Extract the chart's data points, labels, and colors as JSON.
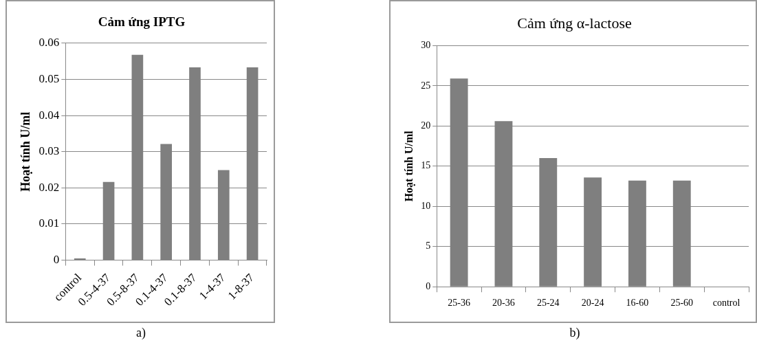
{
  "chart_data": [
    {
      "type": "bar",
      "title": "Cảm ứng IPTG",
      "ylabel": "Hoạt tính U/ml",
      "categories": [
        "control",
        "0.5-4-37",
        "0.5-8-37",
        "0.1-4-37",
        "0.1-8-37",
        "1-4-37",
        "1-8-37"
      ],
      "values": [
        0.0005,
        0.0216,
        0.0568,
        0.0321,
        0.0533,
        0.0249,
        0.0533
      ],
      "color": "#7f7f7f",
      "ylim": [
        0,
        0.06
      ],
      "yticks": [
        0,
        0.01,
        0.02,
        0.03,
        0.04,
        0.05,
        0.06
      ],
      "grid": "y",
      "legend": false,
      "annotations": [
        "a)"
      ]
    },
    {
      "type": "bar",
      "title": "Cảm ứng α-lactose",
      "ylabel": "Hoạt tính U/ml",
      "categories": [
        "25-36",
        "20-36",
        "25-24",
        "20-24",
        "16-60",
        "25-60",
        "control"
      ],
      "values": [
        25.9,
        20.6,
        16.0,
        13.6,
        13.2,
        13.2,
        0
      ],
      "color": "#7f7f7f",
      "ylim": [
        0,
        30
      ],
      "yticks": [
        0,
        5,
        10,
        15,
        20,
        25,
        30
      ],
      "grid": "y",
      "legend": false,
      "annotations": [
        "b)"
      ]
    }
  ]
}
